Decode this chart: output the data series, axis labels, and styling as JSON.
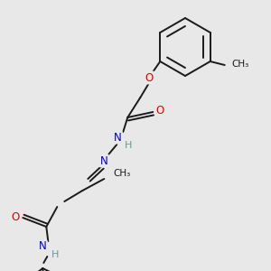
{
  "background_color": "#e8e8e8",
  "bond_color": "#1a1a1a",
  "atom_colors": {
    "O": "#dd0000",
    "N": "#0000cc",
    "H": "#6a9a9a",
    "C": "#1a1a1a"
  },
  "figsize": [
    3.0,
    3.0
  ],
  "dpi": 100,
  "xlim": [
    0,
    300
  ],
  "ylim": [
    0,
    300
  ]
}
